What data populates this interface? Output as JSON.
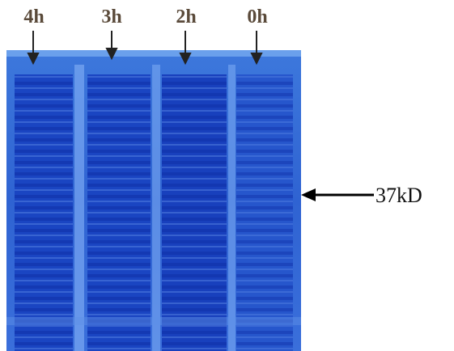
{
  "lanes": [
    {
      "label": "4h"
    },
    {
      "label": "3h"
    },
    {
      "label": "2h"
    },
    {
      "label": "0h"
    }
  ],
  "marker": {
    "label": "37kD"
  }
}
